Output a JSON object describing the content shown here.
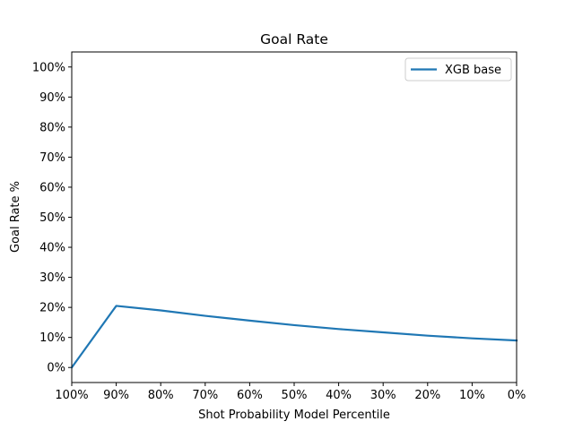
{
  "chart_data": {
    "type": "line",
    "title": "Goal Rate",
    "xlabel": "Shot Probability Model Percentile",
    "ylabel": "Goal Rate %",
    "x": [
      100,
      90,
      80,
      70,
      60,
      50,
      40,
      30,
      20,
      10,
      0
    ],
    "x_inverted": true,
    "xlim": [
      100,
      0
    ],
    "ylim": [
      -5,
      105
    ],
    "x_ticks": [
      100,
      90,
      80,
      70,
      60,
      50,
      40,
      30,
      20,
      10,
      0
    ],
    "x_tick_labels": [
      "100%",
      "90%",
      "80%",
      "70%",
      "60%",
      "50%",
      "40%",
      "30%",
      "20%",
      "10%",
      "0%"
    ],
    "y_ticks": [
      0,
      10,
      20,
      30,
      40,
      50,
      60,
      70,
      80,
      90,
      100
    ],
    "y_tick_labels": [
      "0%",
      "10%",
      "20%",
      "30%",
      "40%",
      "50%",
      "60%",
      "70%",
      "80%",
      "90%",
      "100%"
    ],
    "grid": false,
    "legend_position": "top-right",
    "series": [
      {
        "name": "XGB base",
        "color": "#1f77b4",
        "x": [
          100,
          90,
          80,
          70,
          60,
          50,
          40,
          30,
          20,
          10,
          0
        ],
        "values": [
          0,
          20.5,
          19.0,
          17.2,
          15.6,
          14.1,
          12.8,
          11.7,
          10.6,
          9.7,
          9.0
        ]
      }
    ]
  }
}
